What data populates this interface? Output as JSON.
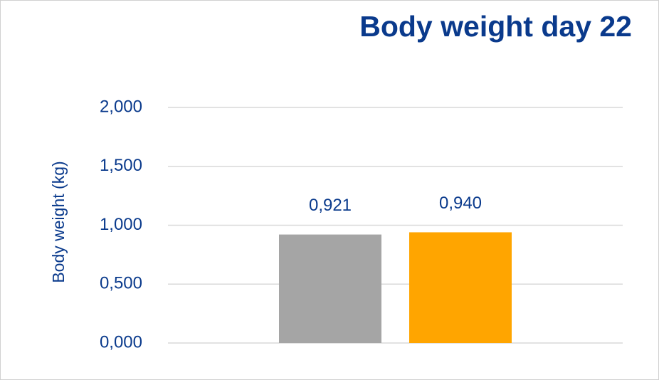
{
  "chart_data": {
    "type": "bar",
    "title": "Body weight day 22",
    "y_label": "Body weight (kg)",
    "categories": [
      null
    ],
    "series": [
      {
        "color": "#a5a5a5",
        "values": [
          0.921
        ],
        "value_labels": [
          "0,921"
        ]
      },
      {
        "color": "#ffa500",
        "values": [
          0.94
        ],
        "value_labels": [
          "0,940"
        ]
      }
    ],
    "ylim": [
      0,
      2
    ],
    "yticks": [
      {
        "value": 0,
        "label": "0,000"
      },
      {
        "value": 0.5,
        "label": "0,500"
      },
      {
        "value": 1,
        "label": "1,000"
      },
      {
        "value": 1.5,
        "label": "1,500"
      },
      {
        "value": 2,
        "label": "2,000"
      }
    ],
    "grid": true
  }
}
